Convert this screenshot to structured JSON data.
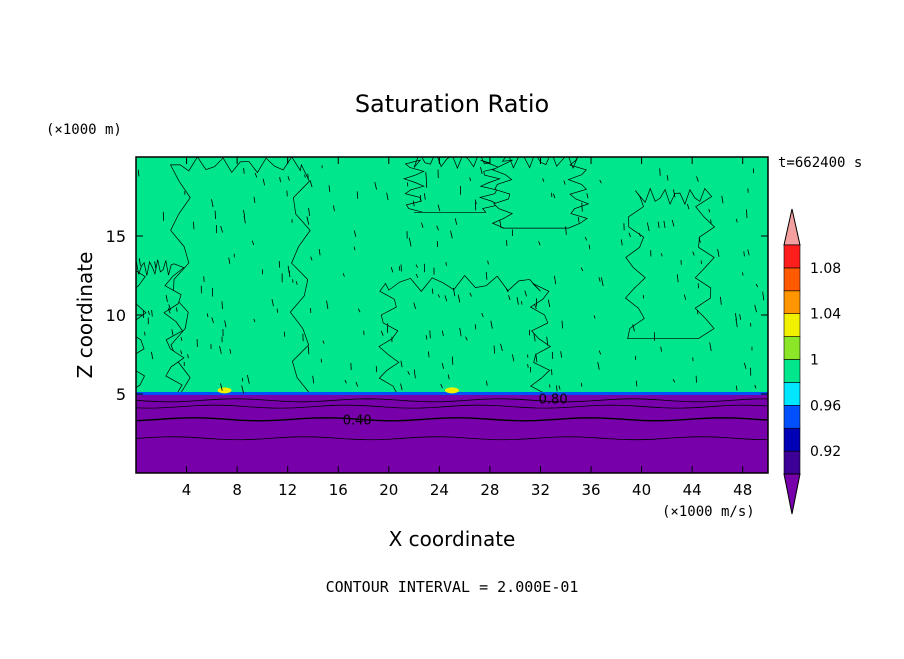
{
  "chart_data": {
    "type": "heatmap",
    "title": "Saturation Ratio",
    "xlabel": "X coordinate",
    "ylabel": "Z coordinate",
    "x_unit": "(×1000 m/s)",
    "y_unit": "(×1000 m)",
    "time_label": "t=662400 s",
    "footer": "CONTOUR INTERVAL = 2.000E-01",
    "xlim": [
      0,
      50
    ],
    "ylim": [
      0,
      20
    ],
    "x_ticks": [
      4,
      8,
      12,
      16,
      20,
      24,
      28,
      32,
      36,
      40,
      44,
      48
    ],
    "y_ticks": [
      5,
      10,
      15
    ],
    "colorbar": {
      "levels": [
        0.92,
        0.96,
        1,
        1.04,
        1.08
      ],
      "labels": [
        "0.92",
        "0.96",
        "1",
        "1.04",
        "1.08"
      ],
      "colors": [
        "#3c0096",
        "#0000b4",
        "#0050ff",
        "#00e6ff",
        "#00e68c",
        "#8ce628",
        "#f0f000",
        "#ff9600",
        "#ff5a00",
        "#ff1e1e",
        "#f5a0a0"
      ],
      "under_color": "#7800aa",
      "over_color": "#f5a0a0"
    },
    "contour_labels": [
      {
        "text": "0.40",
        "x": 17.5,
        "z": 3.4
      },
      {
        "text": "0.80",
        "x": 33,
        "z": 4.7
      }
    ],
    "boundary_layer_top_z": 5,
    "subsaturated_value_below_boundary": 0.4,
    "dominant_value_above_boundary": 0.98,
    "supersaturated_regions": [
      {
        "x_range": [
          3.5,
          13
        ],
        "z_range": [
          5,
          19.5
        ],
        "value": 1.01
      },
      {
        "x_range": [
          20,
          32
        ],
        "z_range": [
          5,
          12
        ],
        "value": 1.01
      },
      {
        "x_range": [
          22,
          28
        ],
        "z_range": [
          16.5,
          19.8
        ],
        "value": 1.01
      },
      {
        "x_range": [
          29,
          35
        ],
        "z_range": [
          15.5,
          19.8
        ],
        "value": 1.01
      },
      {
        "x_range": [
          39.5,
          45
        ],
        "z_range": [
          8.5,
          17.5
        ],
        "value": 1.01
      },
      {
        "x_range": [
          0,
          3
        ],
        "z_range": [
          5,
          13
        ],
        "value": 1.01
      }
    ]
  }
}
